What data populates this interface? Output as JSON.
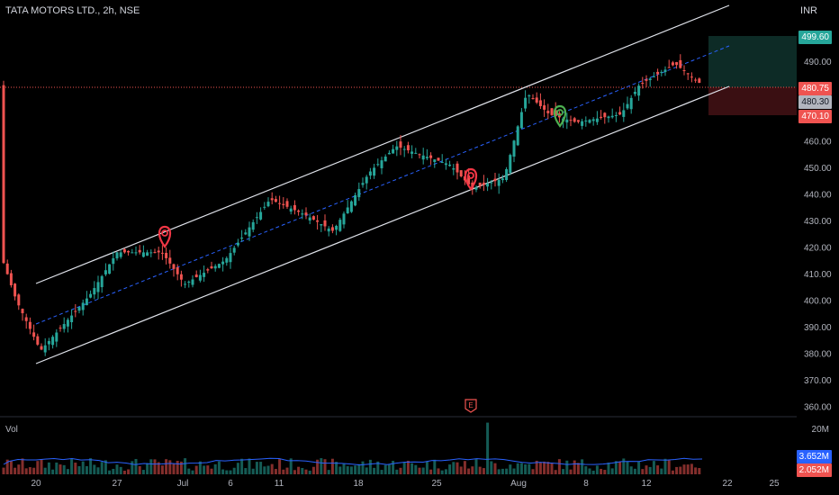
{
  "header": {
    "symbol_title": "TATA MOTORS LTD., 2h, NSE",
    "currency": "INR"
  },
  "price_axis": {
    "ticks": [
      "490.00",
      "470.00",
      "460.00",
      "450.00",
      "440.00",
      "430.00",
      "420.00",
      "410.00",
      "400.00",
      "390.00",
      "380.00",
      "370.00",
      "360.00"
    ]
  },
  "price_tags": {
    "target": "499.60",
    "last": "480.75",
    "prev": "480.30",
    "stop": "470.10"
  },
  "volume": {
    "label": "Vol",
    "max_label": "20M",
    "up_value": "3.652M",
    "down_value": "2.052M"
  },
  "time_axis": {
    "labels": [
      "20",
      "27",
      "Jul",
      "6",
      "11",
      "18",
      "25",
      "Aug",
      "8",
      "12",
      "22",
      "25"
    ]
  },
  "earnings_marker": "E",
  "colors": {
    "up": "#26a69a",
    "down": "#ef5350",
    "target_zone": "#0d2b26",
    "stop_zone": "#3a0f12",
    "midline": "#2962ff",
    "marker_green": "#4caf50",
    "marker_red": "#f23645"
  }
}
